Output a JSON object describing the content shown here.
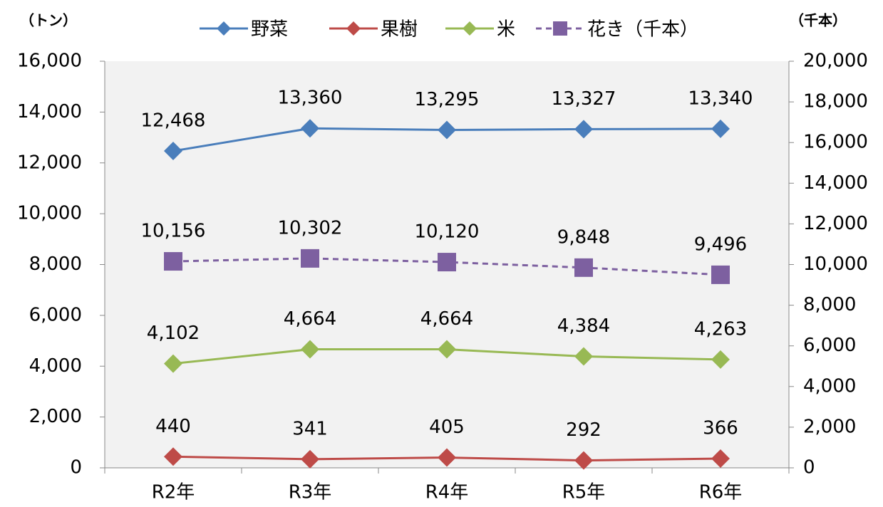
{
  "chart_data": {
    "type": "line",
    "y_label": "（トン）",
    "y2_label": "（千本）",
    "categories": [
      "R2年",
      "R3年",
      "R4年",
      "R5年",
      "R6年"
    ],
    "series": [
      {
        "name": "野菜",
        "color": "#4a7ebb",
        "marker": "diamond",
        "values": [
          12468,
          13360,
          13295,
          13327,
          13340
        ],
        "value_labels": [
          "12,468",
          "13,360",
          "13,295",
          "13,327",
          "13,340"
        ]
      },
      {
        "name": "果樹",
        "color": "#be4b48",
        "marker": "diamond",
        "values": [
          440,
          341,
          405,
          292,
          366
        ]
      },
      {
        "name": "米",
        "color": "#98b954",
        "marker": "diamond",
        "values": [
          4102,
          4664,
          4664,
          4384,
          4263
        ],
        "value_labels": [
          "4,102",
          "4,664",
          "4,664",
          "4,384",
          "4,263"
        ]
      },
      {
        "name": "花き（千本）",
        "color": "#7d60a0",
        "marker": "square",
        "dashed": true,
        "axis": "y2",
        "values": [
          10156,
          10302,
          10120,
          9848,
          9496
        ],
        "value_labels": [
          "10,156",
          "10,302",
          "10,120",
          "9,848",
          "9,496"
        ]
      }
    ],
    "ylim": [
      0,
      16000
    ],
    "yticks": [
      0,
      {
        "value": 2000,
        "label": "2,000"
      },
      {
        "value": 4000,
        "label": "4,000"
      },
      {
        "value": 6000,
        "label": "6,000"
      },
      {
        "value": 8000,
        "label": "8,000"
      },
      {
        "value": 10000,
        "label": "10,000"
      },
      {
        "value": 12000,
        "label": "12,000"
      },
      {
        "value": 14000,
        "label": "14,000"
      },
      {
        "value": 16000,
        "label": "16,000"
      }
    ],
    "y2lim": [
      0,
      20000
    ],
    "y2ticks": [
      0,
      {
        "value": 2000,
        "label": "2,000"
      },
      {
        "value": 4000,
        "label": "4,000"
      },
      {
        "value": 6000,
        "label": "6,000"
      },
      {
        "value": 8000,
        "label": "8,000"
      },
      {
        "value": 10000,
        "label": "10,000"
      },
      {
        "value": 12000,
        "label": "12,000"
      },
      {
        "value": 14000,
        "label": "14,000"
      },
      {
        "value": 16000,
        "label": "16,000"
      },
      {
        "value": 18000,
        "label": "18,000"
      },
      {
        "value": 20000,
        "label": "20,000"
      }
    ],
    "legend": "top",
    "grid": false,
    "plot_background": "#f2f2f2"
  }
}
